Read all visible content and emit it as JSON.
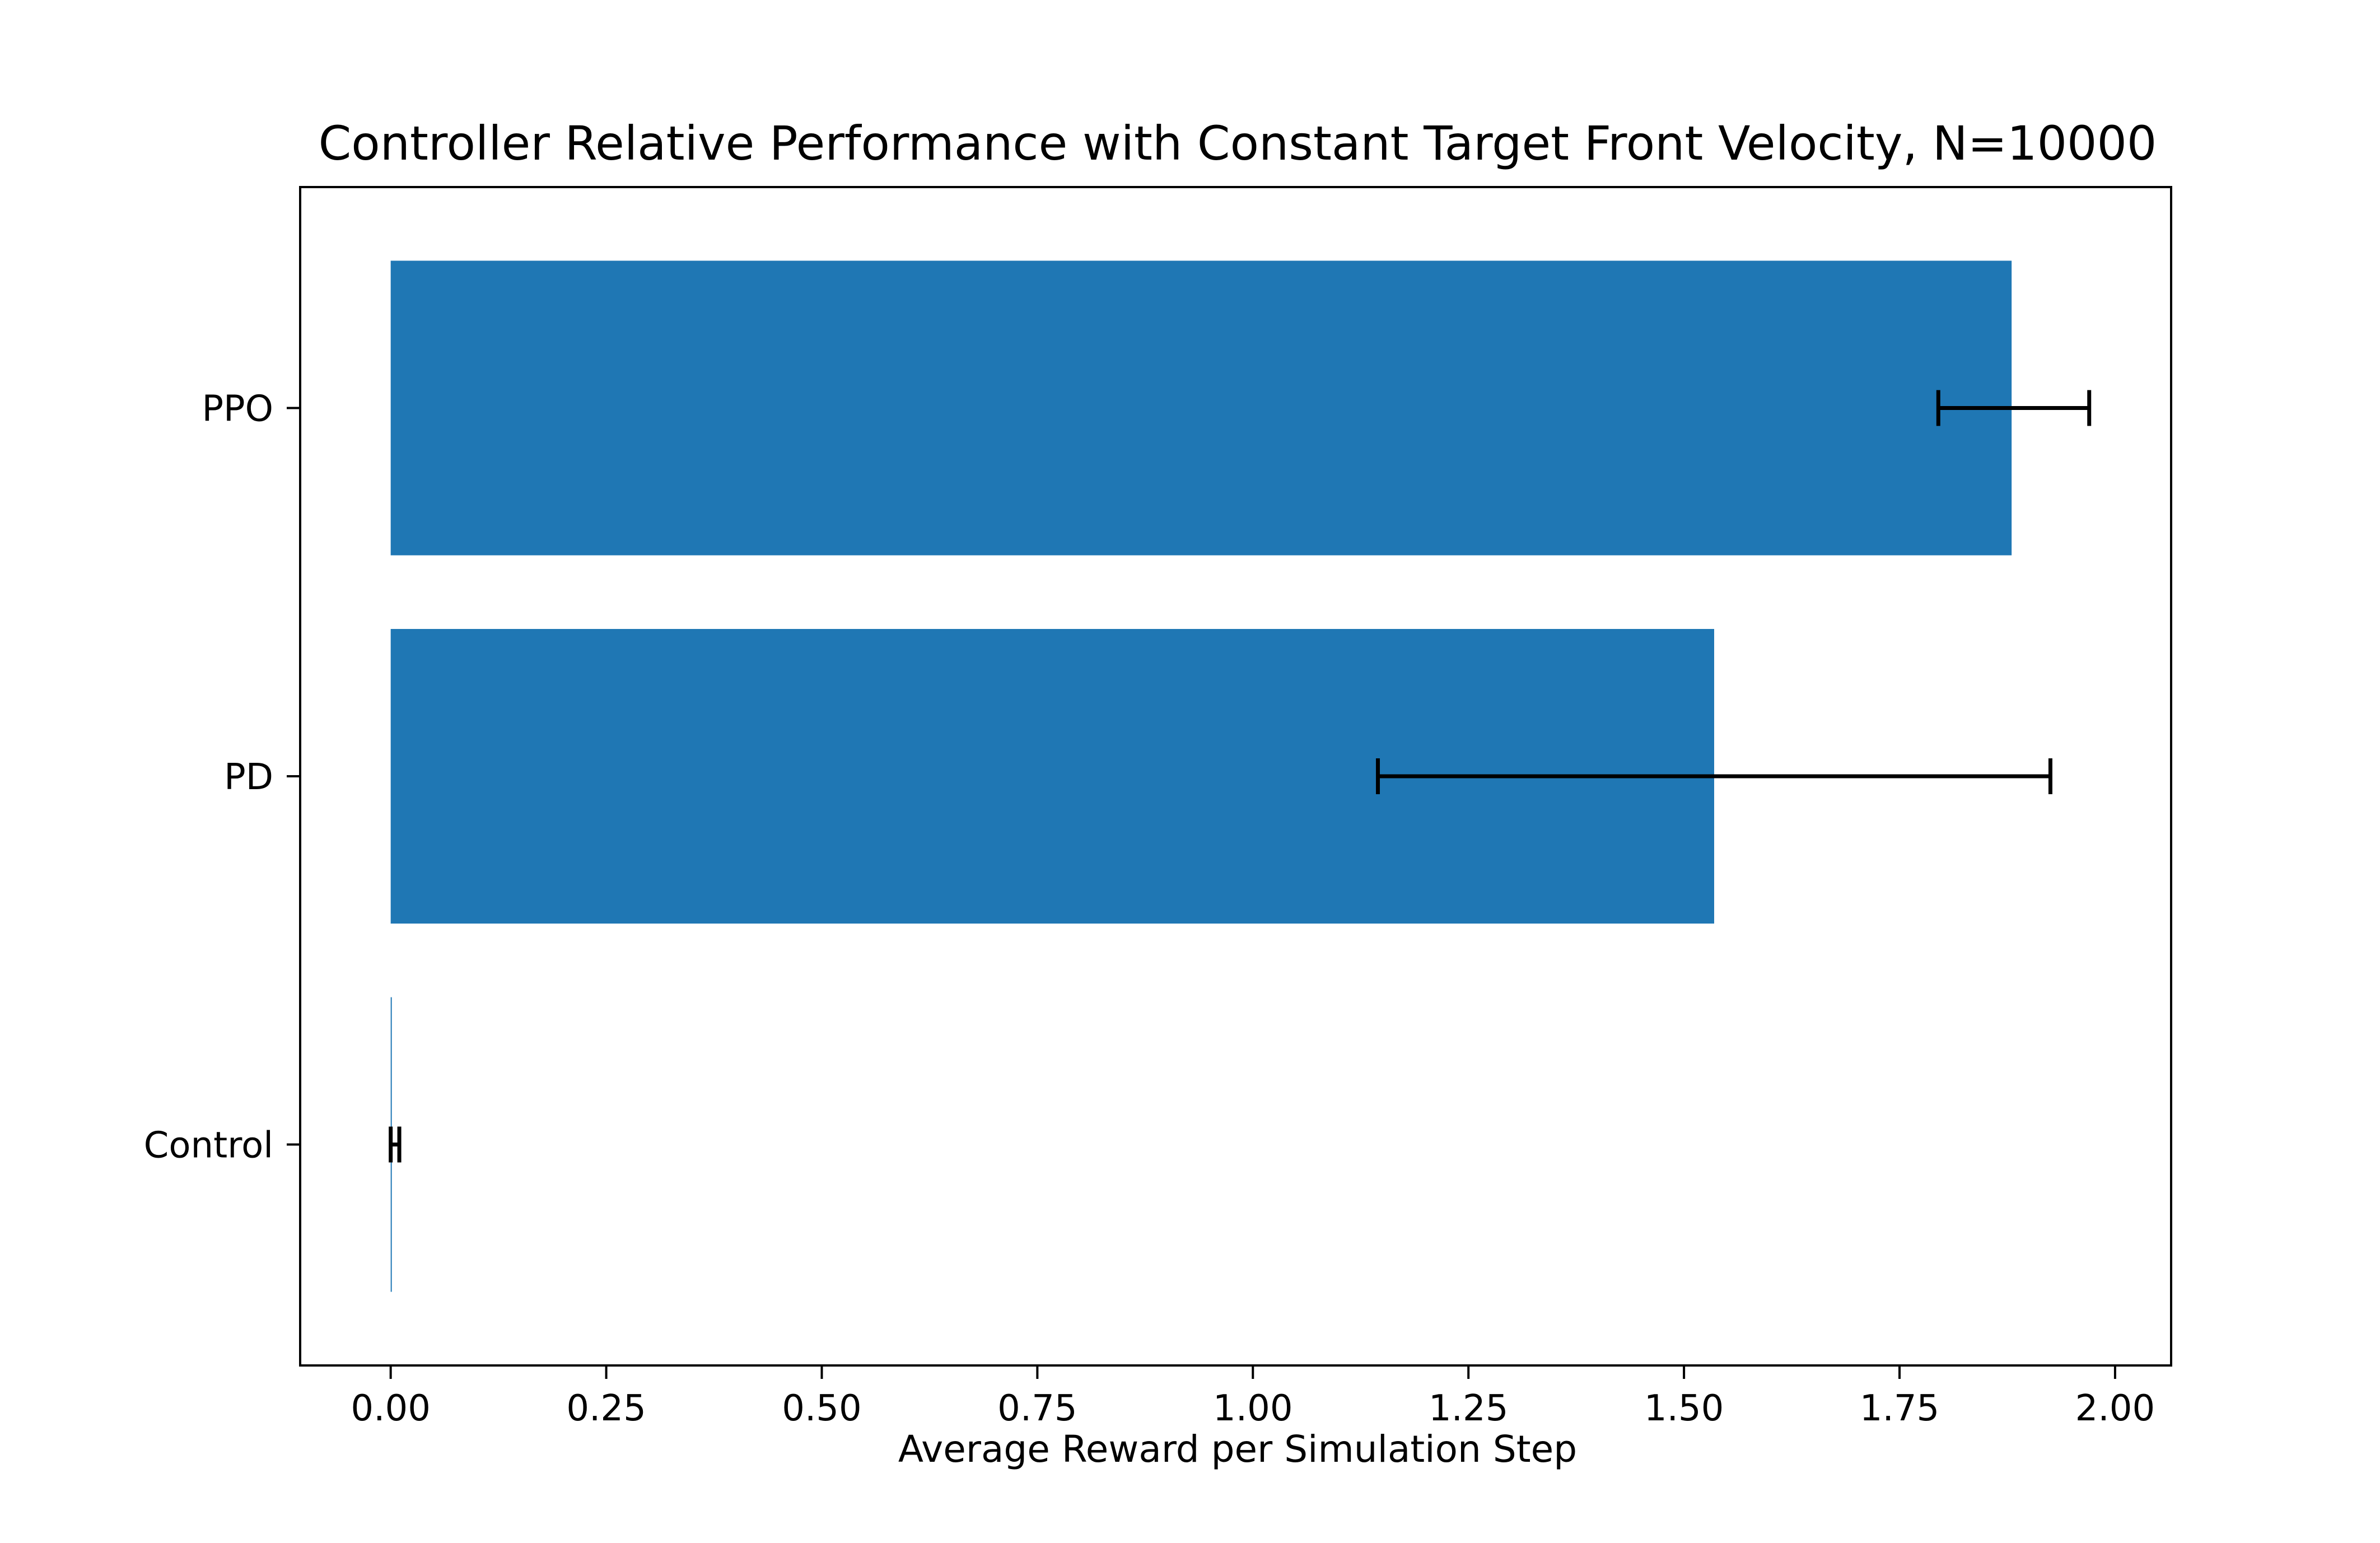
{
  "chart_data": {
    "type": "bar",
    "orientation": "horizontal",
    "title": "Controller Relative Performance with Constant Target Front Velocity, N=10000",
    "xlabel": "Average Reward per Simulation Step",
    "ylabel": "",
    "categories": [
      "Control",
      "PD",
      "PPO"
    ],
    "values": [
      0.0,
      1.535,
      1.88
    ],
    "error_low": [
      0.0,
      1.145,
      1.795
    ],
    "error_high": [
      0.01,
      1.925,
      1.97
    ],
    "xlim": [
      -0.105,
      2.065
    ],
    "xticks": [
      0.0,
      0.25,
      0.5,
      0.75,
      1.0,
      1.25,
      1.5,
      1.75,
      2.0
    ],
    "xtick_labels": [
      "0.00",
      "0.25",
      "0.50",
      "0.75",
      "1.00",
      "1.25",
      "1.50",
      "1.75",
      "2.00"
    ],
    "bar_color": "#1f77b4",
    "error_color": "#000000",
    "grid": false,
    "legend": false
  }
}
